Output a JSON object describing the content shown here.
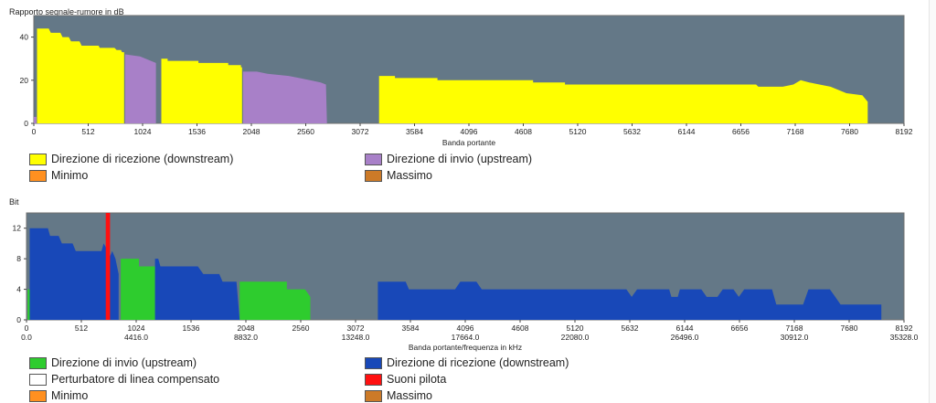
{
  "colors": {
    "plot_bg": "#647887",
    "plot_border": "#6f6f6f",
    "yellow": "#ffff00",
    "purple": "#a880c8",
    "blue": "#1848b8",
    "green": "#2ecc2e",
    "red": "#ff1010",
    "orange": "#ff9020",
    "brown": "#cc7a28",
    "white": "#ffffff"
  },
  "chart_data": [
    {
      "type": "area",
      "title": "Rapporto segnale-rumore in dB",
      "xlabel": "Banda portante",
      "ylabel": "",
      "xlim": [
        0,
        8192
      ],
      "ylim": [
        0,
        50
      ],
      "xticks": [
        "0",
        "512",
        "1024",
        "1536",
        "2048",
        "2560",
        "3072",
        "3584",
        "4096",
        "4608",
        "5120",
        "5632",
        "6144",
        "6656",
        "7168",
        "7680",
        "8192"
      ],
      "yticks": [
        "0",
        "20",
        "40"
      ],
      "series": [
        {
          "name": "Direzione di ricezione (downstream)",
          "color_key": "yellow",
          "segments": [
            [
              [
                30,
                0
              ],
              [
                30,
                44
              ],
              [
                140,
                44
              ],
              [
                160,
                42
              ],
              [
                250,
                42
              ],
              [
                270,
                40
              ],
              [
                330,
                40
              ],
              [
                350,
                38
              ],
              [
                430,
                38
              ],
              [
                450,
                36
              ],
              [
                610,
                36
              ],
              [
                620,
                35
              ],
              [
                760,
                35
              ],
              [
                780,
                34
              ],
              [
                820,
                34
              ],
              [
                830,
                33
              ],
              [
                850,
                33
              ],
              [
                850,
                0
              ]
            ],
            [
              [
                1200,
                0
              ],
              [
                1200,
                30
              ],
              [
                1260,
                30
              ],
              [
                1260,
                29
              ],
              [
                1550,
                29
              ],
              [
                1550,
                28
              ],
              [
                1830,
                28
              ],
              [
                1830,
                27
              ],
              [
                1950,
                27
              ],
              [
                1950,
                26
              ],
              [
                1960,
                26
              ],
              [
                1960,
                0
              ]
            ],
            [
              [
                3250,
                0
              ],
              [
                3250,
                22
              ],
              [
                3400,
                22
              ],
              [
                3400,
                21
              ],
              [
                3800,
                21
              ],
              [
                3800,
                20
              ],
              [
                4700,
                20
              ],
              [
                4700,
                19
              ],
              [
                5000,
                19
              ],
              [
                5000,
                18
              ],
              [
                5600,
                18
              ],
              [
                5600,
                18
              ],
              [
                6200,
                18
              ],
              [
                6200,
                18
              ],
              [
                6800,
                18
              ],
              [
                6820,
                17
              ],
              [
                7050,
                17
              ],
              [
                7150,
                18
              ],
              [
                7220,
                20
              ],
              [
                7300,
                19
              ],
              [
                7500,
                17
              ],
              [
                7650,
                14
              ],
              [
                7800,
                13
              ],
              [
                7850,
                10
              ],
              [
                7850,
                0
              ]
            ]
          ]
        },
        {
          "name": "Direzione di invio (upstream)",
          "color_key": "purple",
          "segments": [
            [
              [
                0,
                0
              ],
              [
                0,
                3
              ],
              [
                25,
                3
              ],
              [
                25,
                0
              ]
            ],
            [
              [
                860,
                0
              ],
              [
                860,
                32
              ],
              [
                1000,
                31
              ],
              [
                1150,
                28
              ],
              [
                1150,
                0
              ]
            ],
            [
              [
                1970,
                0
              ],
              [
                1970,
                24
              ],
              [
                2100,
                24
              ],
              [
                2200,
                23
              ],
              [
                2400,
                22
              ],
              [
                2500,
                21
              ],
              [
                2600,
                20
              ],
              [
                2700,
                19
              ],
              [
                2750,
                18
              ],
              [
                2760,
                0
              ]
            ]
          ]
        },
        {
          "name": "Minimo",
          "color_key": "orange",
          "segments": []
        },
        {
          "name": "Massimo",
          "color_key": "brown",
          "segments": []
        }
      ],
      "legend": [
        {
          "label": "Direzione di ricezione (downstream)",
          "color_key": "yellow"
        },
        {
          "label": "Direzione di invio (upstream)",
          "color_key": "purple"
        },
        {
          "label": "Minimo",
          "color_key": "orange"
        },
        {
          "label": "Massimo",
          "color_key": "brown"
        }
      ]
    },
    {
      "type": "area",
      "title": "Bit",
      "xlabel": "Banda portante/frequenza in kHz",
      "ylabel": "",
      "xlim": [
        0,
        8192
      ],
      "ylim": [
        0,
        14
      ],
      "xticks": [
        "0",
        "512",
        "1024",
        "1536",
        "2048",
        "2560",
        "3072",
        "3584",
        "4096",
        "4608",
        "5120",
        "5632",
        "6144",
        "6656",
        "7168",
        "7680",
        "8192"
      ],
      "xticks_freq": [
        "0.0",
        "",
        "4416.0",
        "",
        "8832.0",
        "",
        "13248.0",
        "",
        "17664.0",
        "",
        "22080.0",
        "",
        "26496.0",
        "",
        "30912.0",
        "",
        "35328.0"
      ],
      "yticks": [
        "0",
        "4",
        "8",
        "12"
      ],
      "series": [
        {
          "name": "Direzione di invio (upstream)",
          "color_key": "green",
          "segments": [
            [
              [
                10,
                0
              ],
              [
                10,
                4
              ],
              [
                30,
                4
              ],
              [
                30,
                0
              ]
            ],
            [
              [
                880,
                0
              ],
              [
                880,
                8
              ],
              [
                1050,
                8
              ],
              [
                1050,
                7
              ],
              [
                1200,
                7
              ],
              [
                1200,
                0
              ]
            ],
            [
              [
                1990,
                0
              ],
              [
                1990,
                5
              ],
              [
                2430,
                5
              ],
              [
                2430,
                4
              ],
              [
                2600,
                4
              ],
              [
                2650,
                3
              ],
              [
                2650,
                0
              ]
            ]
          ]
        },
        {
          "name": "Direzione di ricezione (downstream)",
          "color_key": "blue",
          "segments": [
            [
              [
                30,
                0
              ],
              [
                30,
                12
              ],
              [
                200,
                12
              ],
              [
                220,
                11
              ],
              [
                300,
                11
              ],
              [
                330,
                10
              ],
              [
                430,
                10
              ],
              [
                460,
                9
              ],
              [
                700,
                9
              ],
              [
                720,
                10
              ],
              [
                760,
                9
              ],
              [
                770,
                0
              ]
            ],
            [
              [
                770,
                0
              ],
              [
                770,
                8
              ],
              [
                800,
                9
              ],
              [
                830,
                8
              ],
              [
                860,
                6
              ],
              [
                860,
                0
              ]
            ],
            [
              [
                1200,
                0
              ],
              [
                1200,
                8
              ],
              [
                1230,
                8
              ],
              [
                1250,
                7
              ],
              [
                1600,
                7
              ],
              [
                1650,
                6
              ],
              [
                1800,
                6
              ],
              [
                1830,
                5
              ],
              [
                1960,
                5
              ],
              [
                1990,
                0
              ]
            ],
            [
              [
                3280,
                0
              ],
              [
                3280,
                5
              ],
              [
                3540,
                5
              ],
              [
                3570,
                4
              ],
              [
                4000,
                4
              ],
              [
                4050,
                5
              ],
              [
                4200,
                5
              ],
              [
                4250,
                4
              ],
              [
                5600,
                4
              ],
              [
                5650,
                3
              ],
              [
                5700,
                4
              ],
              [
                6000,
                4
              ],
              [
                6020,
                3
              ],
              [
                6080,
                3
              ],
              [
                6100,
                4
              ],
              [
                6300,
                4
              ],
              [
                6350,
                3
              ],
              [
                6450,
                3
              ],
              [
                6500,
                4
              ],
              [
                6600,
                4
              ],
              [
                6650,
                3
              ],
              [
                6700,
                4
              ],
              [
                6960,
                4
              ],
              [
                7000,
                2
              ],
              [
                7250,
                2
              ],
              [
                7300,
                4
              ],
              [
                7500,
                4
              ],
              [
                7550,
                3
              ],
              [
                7600,
                2
              ],
              [
                7980,
                2
              ],
              [
                7980,
                0
              ]
            ]
          ]
        },
        {
          "name": "Suoni pilota",
          "color_key": "red",
          "segments": [
            [
              [
                740,
                0
              ],
              [
                740,
                14
              ],
              [
                780,
                14
              ],
              [
                780,
                0
              ]
            ]
          ]
        },
        {
          "name": "Perturbatore di linea compensato",
          "color_key": "white",
          "segments": []
        },
        {
          "name": "Minimo",
          "color_key": "orange",
          "segments": []
        },
        {
          "name": "Massimo",
          "color_key": "brown",
          "segments": []
        }
      ],
      "legend": [
        {
          "label": "Direzione di invio (upstream)",
          "color_key": "green"
        },
        {
          "label": "Direzione di ricezione (downstream)",
          "color_key": "blue"
        },
        {
          "label": "Perturbatore di linea compensato",
          "color_key": "white"
        },
        {
          "label": "Suoni pilota",
          "color_key": "red"
        },
        {
          "label": "Minimo",
          "color_key": "orange"
        },
        {
          "label": "Massimo",
          "color_key": "brown"
        }
      ]
    }
  ]
}
